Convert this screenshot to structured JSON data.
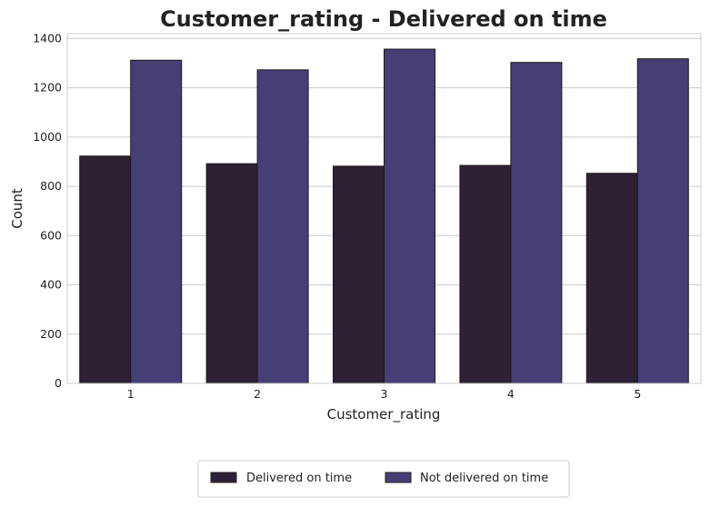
{
  "chart_data": {
    "type": "bar",
    "title": "Customer_rating - Delivered on time",
    "xlabel": "Customer_rating",
    "ylabel": "Count",
    "categories": [
      "1",
      "2",
      "3",
      "4",
      "5"
    ],
    "series": [
      {
        "name": "Delivered on time",
        "values": [
          923,
          892,
          882,
          885,
          853
        ],
        "color": "#2e2135"
      },
      {
        "name": "Not delivered on time",
        "values": [
          1312,
          1273,
          1357,
          1303,
          1318
        ],
        "color": "#453f75"
      }
    ],
    "ylim": [
      0,
      1420
    ],
    "yticks": [
      0,
      200,
      400,
      600,
      800,
      1000,
      1200,
      1400
    ],
    "grid": true,
    "legend_position": "bottom-center"
  }
}
